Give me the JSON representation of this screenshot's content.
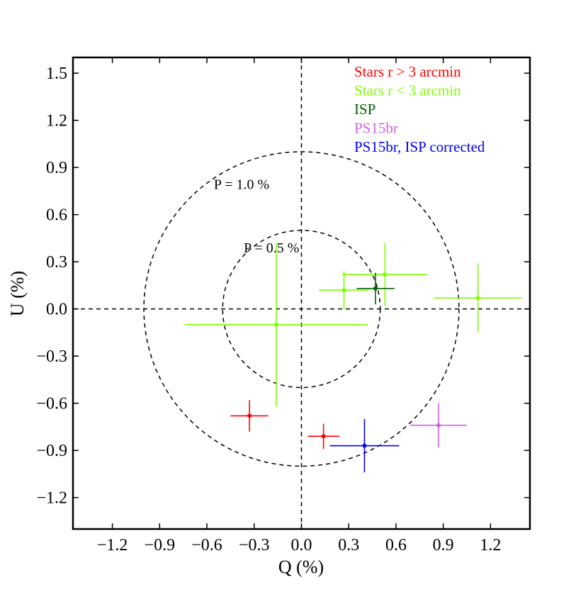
{
  "chart_data": {
    "type": "scatter",
    "title": "",
    "xlabel": "Q (%)",
    "ylabel": "U (%)",
    "xlim": [
      -1.45,
      1.45
    ],
    "ylim": [
      -1.4,
      1.6
    ],
    "xticks": [
      -1.2,
      -0.9,
      -0.6,
      -0.3,
      0.0,
      0.3,
      0.6,
      0.9,
      1.2
    ],
    "xtick_labels": [
      "−1.2",
      "−0.9",
      "−0.6",
      "−0.3",
      "0.0",
      "0.3",
      "0.6",
      "0.9",
      "1.2"
    ],
    "yticks": [
      -1.2,
      -0.9,
      -0.6,
      -0.3,
      0.0,
      0.3,
      0.6,
      0.9,
      1.2,
      1.5
    ],
    "ytick_labels": [
      "−1.2",
      "−0.9",
      "−0.6",
      "−0.3",
      "0.0",
      "0.3",
      "0.6",
      "0.9",
      "1.2",
      "1.5"
    ],
    "grid": false,
    "legend_position": "top-right",
    "reference_circles": [
      {
        "radius": 1.0,
        "label": "P = 1.0 %"
      },
      {
        "radius": 0.5,
        "label": "P = 0.5 %"
      }
    ],
    "series": [
      {
        "name": "Stars r > 3 arcmin",
        "color": "#ff0000",
        "points": [
          {
            "x": -0.33,
            "y": -0.68,
            "xerr": 0.12,
            "yerr": 0.1
          },
          {
            "x": 0.14,
            "y": -0.81,
            "xerr": 0.1,
            "yerr": 0.08
          }
        ]
      },
      {
        "name": "Stars r < 3 arcmin",
        "color": "#7fff00",
        "points": [
          {
            "x": -0.16,
            "y": -0.1,
            "xerr": 0.58,
            "yerr": 0.52
          },
          {
            "x": 0.27,
            "y": 0.12,
            "xerr": 0.16,
            "yerr": 0.12
          },
          {
            "x": 0.53,
            "y": 0.22,
            "xerr": 0.27,
            "yerr": 0.2
          },
          {
            "x": 1.12,
            "y": 0.07,
            "xerr": 0.28,
            "yerr": 0.22
          }
        ]
      },
      {
        "name": "ISP",
        "color": "#006400",
        "points": [
          {
            "x": 0.47,
            "y": 0.13,
            "xerr": 0.12,
            "yerr": 0.1
          }
        ]
      },
      {
        "name": "PS15br",
        "color": "#cc66dd",
        "points": [
          {
            "x": 0.87,
            "y": -0.74,
            "xerr": 0.18,
            "yerr": 0.14
          }
        ]
      },
      {
        "name": "PS15br, ISP corrected",
        "color": "#0000ff",
        "points": [
          {
            "x": 0.4,
            "y": -0.87,
            "xerr": 0.22,
            "yerr": 0.17
          }
        ]
      }
    ]
  }
}
